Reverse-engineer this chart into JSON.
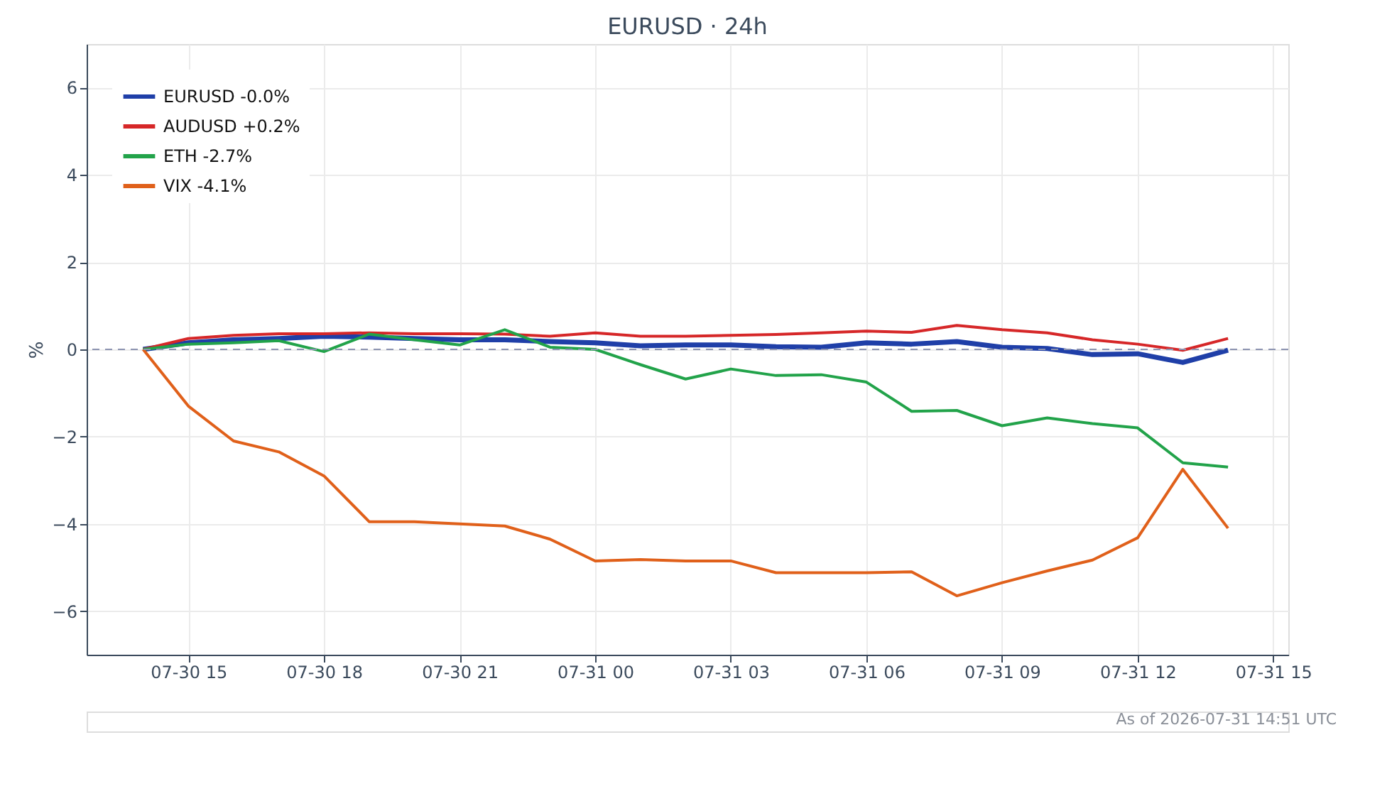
{
  "chart_data": {
    "type": "line",
    "title": "EURUSD · 24h",
    "ylabel": "%",
    "x": [
      "2026-07-30T14:00",
      "2026-07-30T15:00",
      "2026-07-30T16:00",
      "2026-07-30T17:00",
      "2026-07-30T18:00",
      "2026-07-30T19:00",
      "2026-07-30T20:00",
      "2026-07-30T21:00",
      "2026-07-30T22:00",
      "2026-07-30T23:00",
      "2026-07-31T00:00",
      "2026-07-31T01:00",
      "2026-07-31T02:00",
      "2026-07-31T03:00",
      "2026-07-31T04:00",
      "2026-07-31T05:00",
      "2026-07-31T06:00",
      "2026-07-31T07:00",
      "2026-07-31T08:00",
      "2026-07-31T09:00",
      "2026-07-31T10:00",
      "2026-07-31T11:00",
      "2026-07-31T12:00",
      "2026-07-31T13:00",
      "2026-07-31T14:00"
    ],
    "series": [
      {
        "name": "EURUSD -0.0%",
        "color": "#1f3fa8",
        "values": [
          0,
          0.15,
          0.22,
          0.25,
          0.3,
          0.28,
          0.25,
          0.22,
          0.22,
          0.18,
          0.15,
          0.08,
          0.1,
          0.1,
          0.06,
          0.05,
          0.15,
          0.12,
          0.18,
          0.05,
          0.02,
          -0.12,
          -0.1,
          -0.3,
          -0.02
        ]
      },
      {
        "name": "AUDUSD +0.2%",
        "color": "#d62728",
        "values": [
          0,
          0.25,
          0.32,
          0.36,
          0.36,
          0.38,
          0.36,
          0.36,
          0.35,
          0.3,
          0.38,
          0.3,
          0.3,
          0.32,
          0.34,
          0.38,
          0.42,
          0.39,
          0.55,
          0.45,
          0.38,
          0.22,
          0.12,
          -0.02,
          0.25
        ]
      },
      {
        "name": "ETH -2.7%",
        "color": "#22a34a",
        "values": [
          0,
          0.12,
          0.15,
          0.2,
          -0.05,
          0.35,
          0.22,
          0.1,
          0.45,
          0.05,
          0.0,
          -0.35,
          -0.68,
          -0.45,
          -0.6,
          -0.58,
          -0.75,
          -1.42,
          -1.4,
          -1.75,
          -1.57,
          -1.7,
          -1.8,
          -2.6,
          -2.7
        ]
      },
      {
        "name": "VIX -4.1%",
        "color": "#e0601a",
        "values": [
          0,
          -1.3,
          -2.1,
          -2.35,
          -2.9,
          -3.95,
          -3.95,
          -4.0,
          -4.05,
          -4.35,
          -4.85,
          -4.82,
          -4.85,
          -4.85,
          -5.12,
          -5.12,
          -5.12,
          -5.1,
          -5.65,
          -5.35,
          -5.08,
          -4.83,
          -4.32,
          -2.75,
          -4.1
        ]
      }
    ],
    "xlim": [
      "2026-07-30T12:45",
      "2026-07-31T15:20"
    ],
    "xticks": [
      {
        "value": "2026-07-30T15:00",
        "label": "07-30 15"
      },
      {
        "value": "2026-07-30T18:00",
        "label": "07-30 18"
      },
      {
        "value": "2026-07-30T21:00",
        "label": "07-30 21"
      },
      {
        "value": "2026-07-31T00:00",
        "label": "07-31 00"
      },
      {
        "value": "2026-07-31T03:00",
        "label": "07-31 03"
      },
      {
        "value": "2026-07-31T06:00",
        "label": "07-31 06"
      },
      {
        "value": "2026-07-31T09:00",
        "label": "07-31 09"
      },
      {
        "value": "2026-07-31T12:00",
        "label": "07-31 12"
      },
      {
        "value": "2026-07-31T15:00",
        "label": "07-31 15"
      }
    ],
    "ylim": [
      -7,
      7
    ],
    "yticks": [
      -6,
      -4,
      -2,
      0,
      2,
      4,
      6
    ],
    "ref_lines": [
      {
        "axis": "y",
        "value": 0,
        "color": "#8c93b0",
        "line_style": "dashed"
      }
    ],
    "grid": true,
    "legend": "top left",
    "line_style": "solid",
    "marker": "none",
    "annotations": [
      "As of 2026-07-31 14:51 UTC"
    ]
  }
}
